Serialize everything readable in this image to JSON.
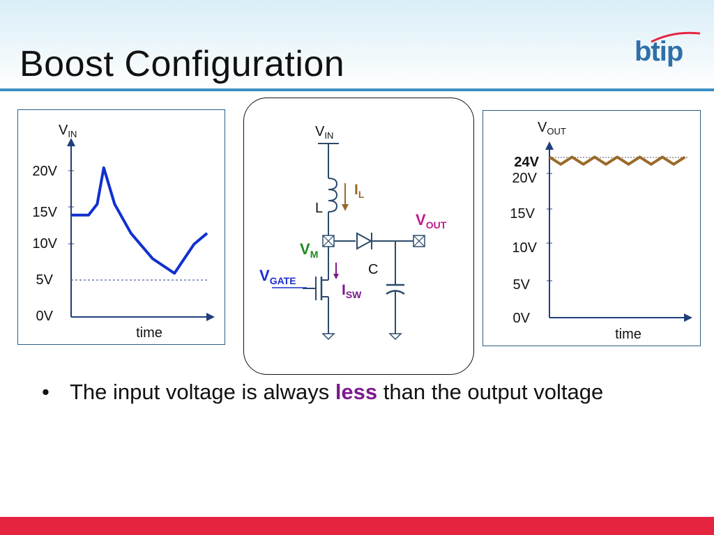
{
  "slide": {
    "title": "Boost Configuration",
    "logo_text": "btip"
  },
  "left_chart": {
    "y_label": "V",
    "y_label_sub": "IN",
    "x_label": "time",
    "ticks": [
      "20V",
      "15V",
      "10V",
      "5V",
      "0V"
    ]
  },
  "right_chart": {
    "y_label": "V",
    "y_label_sub": "OUT",
    "x_label": "time",
    "highlight_tick": "24V",
    "ticks": [
      "20V",
      "15V",
      "10V",
      "5V",
      "0V"
    ]
  },
  "circuit": {
    "vin": "V",
    "vin_sub": "IN",
    "il": "I",
    "il_sub": "L",
    "inductor": "L",
    "vout": "V",
    "vout_sub": "OUT",
    "vm": "V",
    "vm_sub": "M",
    "vgate": "V",
    "vgate_sub": "GATE",
    "capacitor": "C",
    "isw": "I",
    "isw_sub": "SW"
  },
  "bullet": {
    "marker": "•",
    "text_before": "The input voltage is always ",
    "emphasis": "less",
    "text_after": " than the output voltage"
  },
  "chart_data": [
    {
      "type": "line",
      "y_label": "VIN",
      "x_label": "time",
      "y_ticks": [
        0,
        5,
        10,
        15,
        20
      ],
      "ylim": [
        0,
        25
      ],
      "reference_line": 5,
      "series": [
        {
          "x": [
            0,
            1,
            1.6,
            2.4,
            3,
            4,
            5.5,
            7.5,
            9.5,
            11.3,
            12.5
          ],
          "y": [
            14,
            14,
            14,
            15.5,
            20.5,
            15.5,
            11.5,
            8,
            6,
            10,
            11.5
          ],
          "color": "#1030d0"
        }
      ]
    },
    {
      "type": "line",
      "y_label": "VOUT",
      "x_label": "time",
      "y_ticks": [
        0,
        5,
        10,
        15,
        20
      ],
      "highlight": 24,
      "ylim": [
        0,
        25
      ],
      "series": [
        {
          "x": [
            0,
            1,
            2,
            3,
            4,
            5,
            6,
            7,
            8,
            9,
            10,
            11,
            12
          ],
          "y": [
            24.4,
            23.3,
            24.4,
            23.3,
            24.4,
            23.3,
            24.4,
            23.3,
            24.4,
            23.3,
            24.4,
            23.3,
            24.4
          ],
          "color": "#9a6a2a"
        }
      ]
    }
  ]
}
